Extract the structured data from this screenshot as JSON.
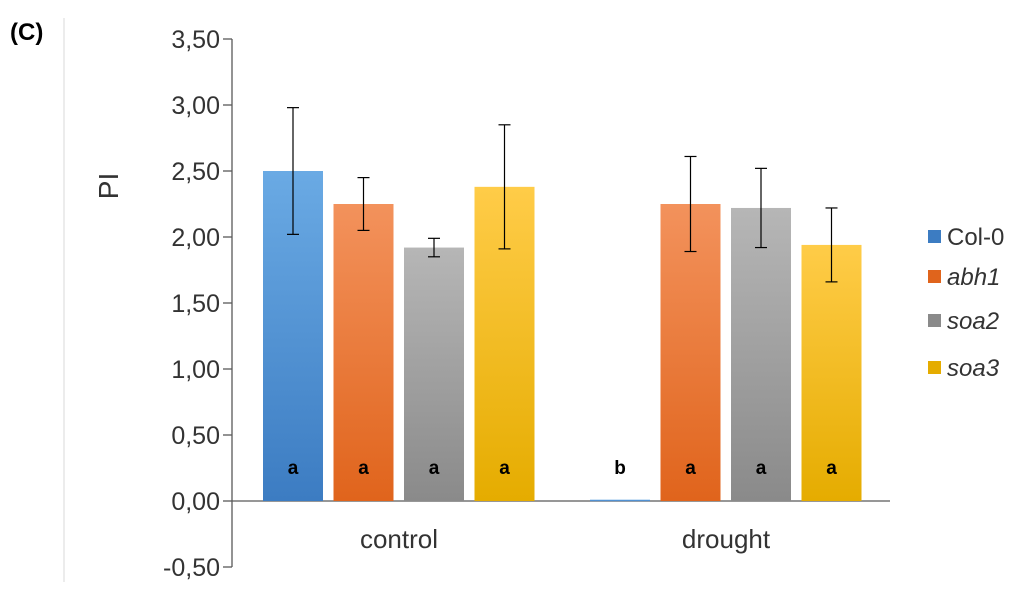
{
  "panel_label": "(C)",
  "chart_data": {
    "type": "bar",
    "ylabel": "PI",
    "xlabel": "",
    "ylim": [
      -0.5,
      3.5
    ],
    "yticks": [
      "3,50",
      "3,00",
      "2,50",
      "2,00",
      "1,50",
      "1,00",
      "0,50",
      "0,00",
      "-0,50"
    ],
    "ytick_values": [
      3.5,
      3.0,
      2.5,
      2.0,
      1.5,
      1.0,
      0.5,
      0.0,
      -0.5
    ],
    "categories": [
      "control",
      "drought"
    ],
    "legend_position": "right",
    "series": [
      {
        "name": "Col-0",
        "italic": false,
        "color_top": "#6aaae4",
        "color_bottom": "#3c7cc2",
        "values": [
          2.5,
          0.01
        ],
        "errors": [
          0.48,
          0.0
        ],
        "significance": [
          "a",
          "b"
        ]
      },
      {
        "name": "abh1",
        "italic": true,
        "color_top": "#f3925c",
        "color_bottom": "#e0641c",
        "values": [
          2.25,
          2.25
        ],
        "errors": [
          0.2,
          0.36
        ],
        "significance": [
          "a",
          "a"
        ]
      },
      {
        "name": "soa2",
        "italic": true,
        "color_top": "#b6b6b6",
        "color_bottom": "#8a8a8a",
        "values": [
          1.92,
          2.22
        ],
        "errors": [
          0.07,
          0.3
        ],
        "significance": [
          "a",
          "a"
        ]
      },
      {
        "name": "soa3",
        "italic": true,
        "color_top": "#ffcc48",
        "color_bottom": "#e5ac00",
        "values": [
          2.38,
          1.94
        ],
        "errors": [
          0.47,
          0.28
        ],
        "significance": [
          "a",
          "a"
        ]
      }
    ]
  }
}
